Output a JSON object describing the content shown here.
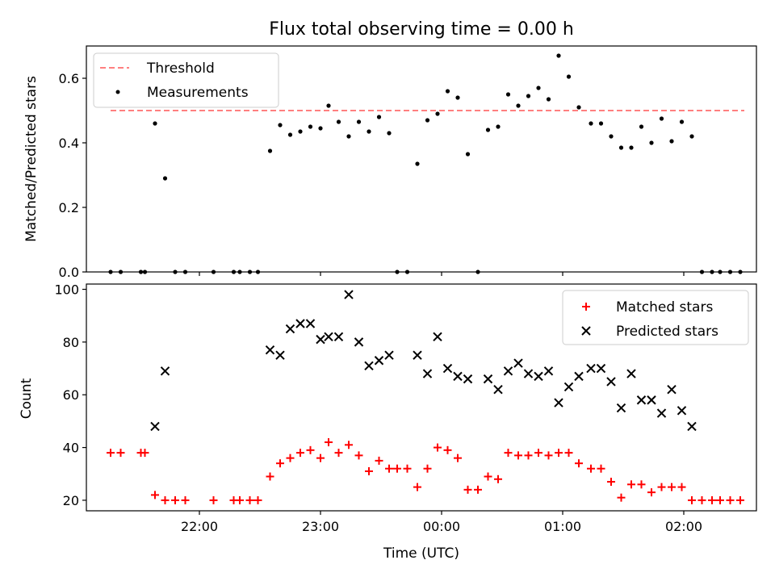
{
  "chart_data": [
    {
      "type": "scatter",
      "title": "Flux total observing time = 0.00 h",
      "xlabel": "",
      "ylabel": "Matched/Predicted stars",
      "ylim": [
        0,
        0.7
      ],
      "yticks": [
        0.0,
        0.2,
        0.4,
        0.6
      ],
      "ytick_labels": [
        "0.0",
        "0.2",
        "0.4",
        "0.6"
      ],
      "xticks": [
        "22:00",
        "23:00",
        "00:00",
        "01:00",
        "02:00"
      ],
      "grid": false,
      "legend_position": "upper-left",
      "threshold": {
        "name": "Threshold",
        "value": 0.5,
        "x_range": [
          "21:16",
          "02:30"
        ],
        "color": "#ff7f7f",
        "style": "dashed"
      },
      "series": [
        {
          "name": "Measurements",
          "color": "#000000",
          "marker": "dot",
          "points": [
            [
              "21:16",
              0.0
            ],
            [
              "21:21",
              0.0
            ],
            [
              "21:31",
              0.0
            ],
            [
              "21:33",
              0.0
            ],
            [
              "21:38",
              0.46
            ],
            [
              "21:43",
              0.29
            ],
            [
              "21:48",
              0.0
            ],
            [
              "21:53",
              0.0
            ],
            [
              "22:07",
              0.0
            ],
            [
              "22:17",
              0.0
            ],
            [
              "22:20",
              0.0
            ],
            [
              "22:25",
              0.0
            ],
            [
              "22:29",
              0.0
            ],
            [
              "22:35",
              0.375
            ],
            [
              "22:40",
              0.455
            ],
            [
              "22:45",
              0.425
            ],
            [
              "22:50",
              0.435
            ],
            [
              "22:55",
              0.45
            ],
            [
              "23:00",
              0.445
            ],
            [
              "23:04",
              0.515
            ],
            [
              "23:09",
              0.465
            ],
            [
              "23:14",
              0.42
            ],
            [
              "23:19",
              0.465
            ],
            [
              "23:24",
              0.435
            ],
            [
              "23:29",
              0.48
            ],
            [
              "23:34",
              0.43
            ],
            [
              "23:38",
              0.0
            ],
            [
              "23:43",
              0.0
            ],
            [
              "23:48",
              0.335
            ],
            [
              "23:53",
              0.47
            ],
            [
              "23:58",
              0.49
            ],
            [
              "00:03",
              0.56
            ],
            [
              "00:08",
              0.54
            ],
            [
              "00:13",
              0.365
            ],
            [
              "00:18",
              0.0
            ],
            [
              "00:23",
              0.44
            ],
            [
              "00:28",
              0.45
            ],
            [
              "00:33",
              0.55
            ],
            [
              "00:38",
              0.515
            ],
            [
              "00:43",
              0.545
            ],
            [
              "00:48",
              0.57
            ],
            [
              "00:53",
              0.535
            ],
            [
              "00:58",
              0.67
            ],
            [
              "01:03",
              0.605
            ],
            [
              "01:08",
              0.51
            ],
            [
              "01:14",
              0.46
            ],
            [
              "01:19",
              0.46
            ],
            [
              "01:24",
              0.42
            ],
            [
              "01:29",
              0.385
            ],
            [
              "01:34",
              0.385
            ],
            [
              "01:39",
              0.45
            ],
            [
              "01:44",
              0.4
            ],
            [
              "01:49",
              0.475
            ],
            [
              "01:54",
              0.405
            ],
            [
              "01:59",
              0.465
            ],
            [
              "02:04",
              0.42
            ],
            [
              "02:09",
              0.0
            ],
            [
              "02:14",
              0.0
            ],
            [
              "02:18",
              0.0
            ],
            [
              "02:23",
              0.0
            ],
            [
              "02:28",
              0.0
            ]
          ]
        }
      ]
    },
    {
      "type": "scatter",
      "title": "",
      "xlabel": "Time (UTC)",
      "ylabel": "Count",
      "ylim": [
        16,
        102
      ],
      "yticks": [
        20,
        40,
        60,
        80,
        100
      ],
      "ytick_labels": [
        "20",
        "40",
        "60",
        "80",
        "100"
      ],
      "xticks": [
        "22:00",
        "23:00",
        "00:00",
        "01:00",
        "02:00"
      ],
      "xtick_labels": [
        "22:00",
        "23:00",
        "00:00",
        "01:00",
        "02:00"
      ],
      "grid": false,
      "legend_position": "upper-right",
      "series": [
        {
          "name": "Matched stars",
          "color": "#ff0000",
          "marker": "plus",
          "points": [
            [
              "21:16",
              38
            ],
            [
              "21:21",
              38
            ],
            [
              "21:31",
              38
            ],
            [
              "21:33",
              38
            ],
            [
              "21:38",
              22
            ],
            [
              "21:43",
              20
            ],
            [
              "21:48",
              20
            ],
            [
              "21:53",
              20
            ],
            [
              "22:07",
              20
            ],
            [
              "22:17",
              20
            ],
            [
              "22:20",
              20
            ],
            [
              "22:25",
              20
            ],
            [
              "22:29",
              20
            ],
            [
              "22:35",
              29
            ],
            [
              "22:40",
              34
            ],
            [
              "22:45",
              36
            ],
            [
              "22:50",
              38
            ],
            [
              "22:55",
              39
            ],
            [
              "23:00",
              36
            ],
            [
              "23:04",
              42
            ],
            [
              "23:09",
              38
            ],
            [
              "23:14",
              41
            ],
            [
              "23:19",
              37
            ],
            [
              "23:24",
              31
            ],
            [
              "23:29",
              35
            ],
            [
              "23:34",
              32
            ],
            [
              "23:38",
              32
            ],
            [
              "23:43",
              32
            ],
            [
              "23:48",
              25
            ],
            [
              "23:53",
              32
            ],
            [
              "23:58",
              40
            ],
            [
              "00:03",
              39
            ],
            [
              "00:08",
              36
            ],
            [
              "00:13",
              24
            ],
            [
              "00:18",
              24
            ],
            [
              "00:23",
              29
            ],
            [
              "00:28",
              28
            ],
            [
              "00:33",
              38
            ],
            [
              "00:38",
              37
            ],
            [
              "00:43",
              37
            ],
            [
              "00:48",
              38
            ],
            [
              "00:53",
              37
            ],
            [
              "00:58",
              38
            ],
            [
              "01:03",
              38
            ],
            [
              "01:08",
              34
            ],
            [
              "01:14",
              32
            ],
            [
              "01:19",
              32
            ],
            [
              "01:24",
              27
            ],
            [
              "01:29",
              21
            ],
            [
              "01:34",
              26
            ],
            [
              "01:39",
              26
            ],
            [
              "01:44",
              23
            ],
            [
              "01:49",
              25
            ],
            [
              "01:54",
              25
            ],
            [
              "01:59",
              25
            ],
            [
              "02:04",
              20
            ],
            [
              "02:09",
              20
            ],
            [
              "02:14",
              20
            ],
            [
              "02:18",
              20
            ],
            [
              "02:23",
              20
            ],
            [
              "02:28",
              20
            ]
          ]
        },
        {
          "name": "Predicted stars",
          "color": "#000000",
          "marker": "x",
          "points": [
            [
              "21:38",
              48
            ],
            [
              "21:43",
              69
            ],
            [
              "22:35",
              77
            ],
            [
              "22:40",
              75
            ],
            [
              "22:45",
              85
            ],
            [
              "22:50",
              87
            ],
            [
              "22:55",
              87
            ],
            [
              "23:00",
              81
            ],
            [
              "23:04",
              82
            ],
            [
              "23:09",
              82
            ],
            [
              "23:14",
              98
            ],
            [
              "23:19",
              80
            ],
            [
              "23:24",
              71
            ],
            [
              "23:29",
              73
            ],
            [
              "23:34",
              75
            ],
            [
              "23:48",
              75
            ],
            [
              "23:53",
              68
            ],
            [
              "23:58",
              82
            ],
            [
              "00:03",
              70
            ],
            [
              "00:08",
              67
            ],
            [
              "00:13",
              66
            ],
            [
              "00:23",
              66
            ],
            [
              "00:28",
              62
            ],
            [
              "00:33",
              69
            ],
            [
              "00:38",
              72
            ],
            [
              "00:43",
              68
            ],
            [
              "00:48",
              67
            ],
            [
              "00:53",
              69
            ],
            [
              "00:58",
              57
            ],
            [
              "01:03",
              63
            ],
            [
              "01:08",
              67
            ],
            [
              "01:14",
              70
            ],
            [
              "01:19",
              70
            ],
            [
              "01:24",
              65
            ],
            [
              "01:29",
              55
            ],
            [
              "01:34",
              68
            ],
            [
              "01:39",
              58
            ],
            [
              "01:44",
              58
            ],
            [
              "01:49",
              53
            ],
            [
              "01:54",
              62
            ],
            [
              "01:59",
              54
            ],
            [
              "02:04",
              48
            ]
          ]
        }
      ]
    }
  ]
}
